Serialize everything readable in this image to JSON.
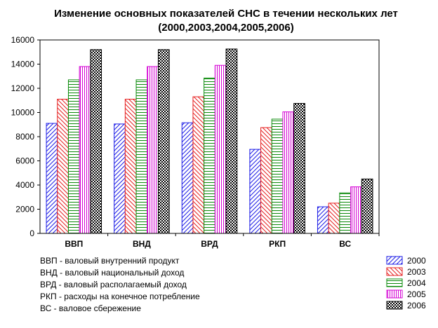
{
  "chart_data": {
    "type": "bar",
    "title": "Изменение основных показателей СНС в течении нескольких лет",
    "subtitle": "(2000,2003,2004,2005,2006)",
    "categories": [
      "ВВП",
      "ВНД",
      "ВРД",
      "РКП",
      "ВС"
    ],
    "series": [
      {
        "name": "2000",
        "color": "#1c1ce6",
        "pattern": "diagonal-lines",
        "values": [
          9100,
          9050,
          9150,
          6950,
          2200
        ]
      },
      {
        "name": "2003",
        "color": "#e62020",
        "pattern": "diagonal-lines-reverse",
        "values": [
          11100,
          11100,
          11300,
          8750,
          2500
        ]
      },
      {
        "name": "2004",
        "color": "#0a8a0a",
        "pattern": "horizontal-lines",
        "values": [
          12700,
          12700,
          12850,
          9450,
          3350
        ]
      },
      {
        "name": "2005",
        "color": "#d400d4",
        "pattern": "vertical-lines",
        "values": [
          13800,
          13800,
          13900,
          10050,
          3850
        ]
      },
      {
        "name": "2006",
        "color": "#000000",
        "pattern": "checkered",
        "values": [
          15200,
          15200,
          15250,
          10750,
          4500
        ]
      }
    ],
    "ylim": [
      0,
      16000
    ],
    "yticks": [
      "0",
      "2000",
      "4000",
      "6000",
      "8000",
      "10000",
      "12000",
      "14000",
      "16000"
    ],
    "xlabel": "",
    "ylabel": "",
    "grid": false,
    "legend_position": "bottom-right",
    "notes": [
      "ВВП - валовый внутренний продукт",
      "ВНД - валовый национальный доход",
      "ВРД - валовый располагаемый доход",
      "РКП - расходы на конечное потребление",
      "ВС -   валовое сбережение"
    ]
  }
}
